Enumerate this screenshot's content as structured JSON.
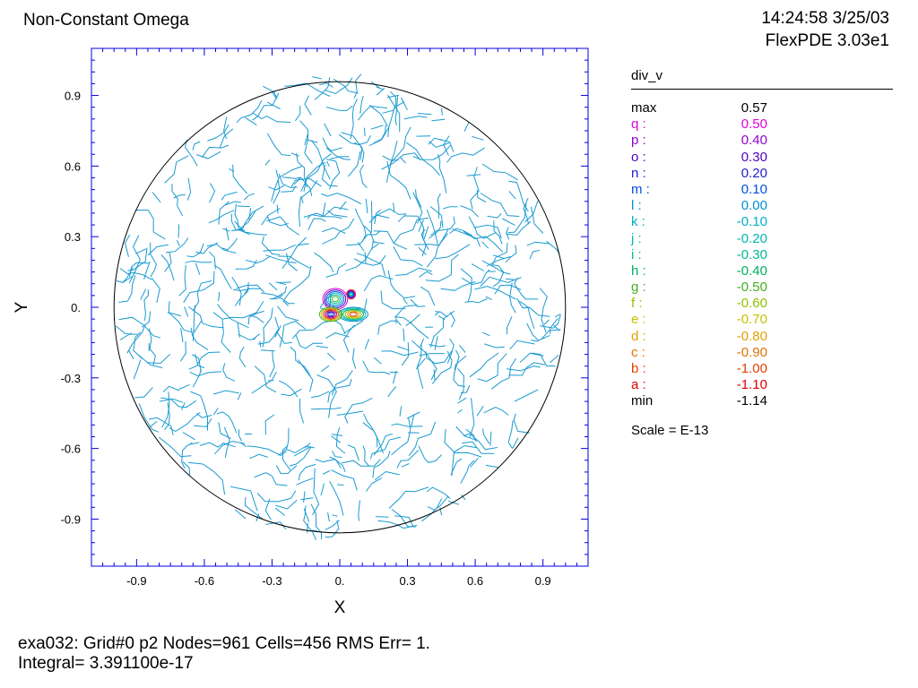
{
  "title": "Non-Constant Omega",
  "timestamp": "14:24:58 3/25/03",
  "program": "FlexPDE 3.03e1",
  "footer": {
    "line1": "exa032:  Grid#0  p2  Nodes=961 Cells=456 RMS Err= 1.",
    "line2": "Integral=  3.391100e-17"
  },
  "chart_data": {
    "type": "contour",
    "variable": "div_v",
    "xlabel": "X",
    "ylabel": "Y",
    "xlim": [
      -1.1,
      1.1
    ],
    "ylim": [
      -1.1,
      1.1
    ],
    "xticks": [
      "-0.9",
      "-0.6",
      "-0.3",
      "0.",
      "0.3",
      "0.6",
      "0.9"
    ],
    "yticks": [
      "0.9",
      "0.6",
      "0.3",
      "0.",
      "-0.3",
      "-0.6",
      "-0.9"
    ],
    "boundary": {
      "shape": "circle",
      "center": [
        0,
        0
      ],
      "radius": 1.0
    },
    "scale": "Scale = E-13",
    "legend": [
      {
        "label": "max",
        "value": "0.57",
        "color": "#000000"
      },
      {
        "label": "q :",
        "value": "0.50",
        "color": "#e000e0"
      },
      {
        "label": "p :",
        "value": "0.40",
        "color": "#9000d0"
      },
      {
        "label": "o :",
        "value": "0.30",
        "color": "#5000c0"
      },
      {
        "label": "n :",
        "value": "0.20",
        "color": "#2020d0"
      },
      {
        "label": "m :",
        "value": "0.10",
        "color": "#0050e0"
      },
      {
        "label": "l :",
        "value": "0.00",
        "color": "#0090d0"
      },
      {
        "label": "k :",
        "value": "-0.10",
        "color": "#00b0c8"
      },
      {
        "label": "j :",
        "value": "-0.20",
        "color": "#00b8b0"
      },
      {
        "label": "i :",
        "value": "-0.30",
        "color": "#00b890"
      },
      {
        "label": "h :",
        "value": "-0.40",
        "color": "#00b060"
      },
      {
        "label": "g :",
        "value": "-0.50",
        "color": "#40b020"
      },
      {
        "label": "f :",
        "value": "-0.60",
        "color": "#90c000"
      },
      {
        "label": "e :",
        "value": "-0.70",
        "color": "#c8c000"
      },
      {
        "label": "d :",
        "value": "-0.80",
        "color": "#e0a000"
      },
      {
        "label": "c :",
        "value": "-0.90",
        "color": "#e07000"
      },
      {
        "label": "b :",
        "value": "-1.00",
        "color": "#e04000"
      },
      {
        "label": "a :",
        "value": "-1.10",
        "color": "#e00000"
      },
      {
        "label": "min",
        "value": "-1.14",
        "color": "#000000"
      }
    ],
    "main_contour_color": "#1a9ad0"
  }
}
